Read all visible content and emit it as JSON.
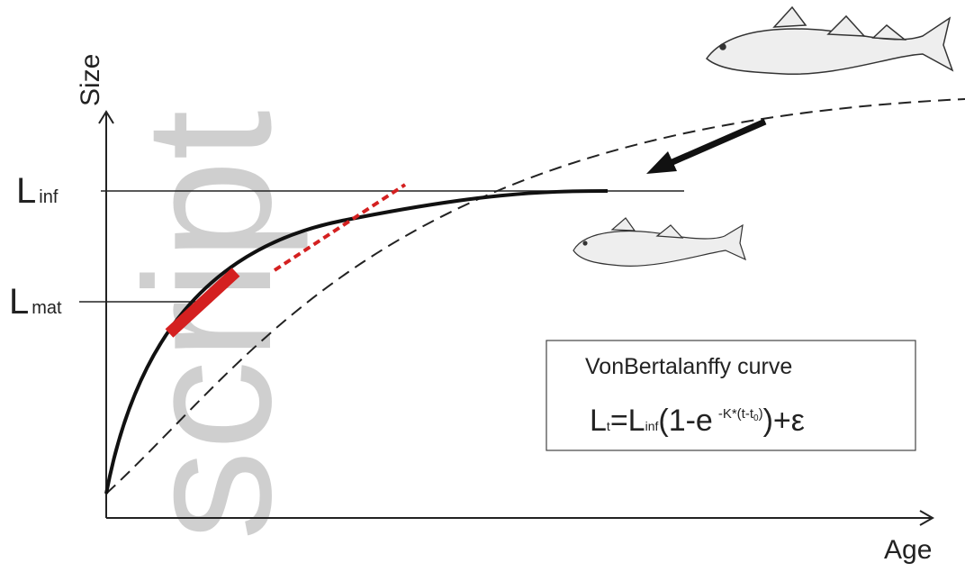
{
  "axes": {
    "y_label": "Size",
    "x_label": "Age"
  },
  "levels": {
    "l_inf": {
      "main": "L",
      "sub": "inf"
    },
    "l_mat": {
      "main": "L",
      "sub": "mat"
    }
  },
  "box": {
    "title": "VonBertalanffy curve",
    "formula": {
      "p1": "L",
      "p2": "t",
      "p3": "=L",
      "p4": "inf",
      "p5": "(1-e",
      "p6": "-K*(t-t",
      "p7": "0",
      "p8": ")",
      "p9": ")+ε"
    }
  },
  "watermark": "script"
}
